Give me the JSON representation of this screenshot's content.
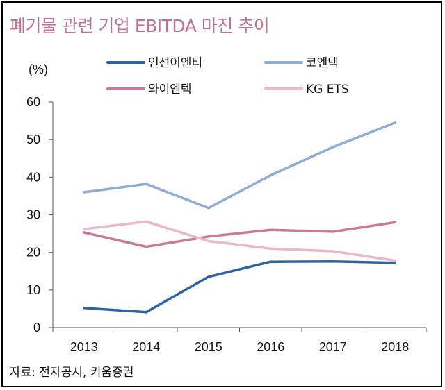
{
  "title": "폐기물 관련 기업 EBITDA 마진 추이",
  "source": "자료: 전자공시, 키움증권",
  "chart_data": {
    "type": "line",
    "title": "폐기물 관련 기업 EBITDA 마진 추이",
    "ylabel": "(%)",
    "xlabel": "",
    "x": [
      "2013",
      "2014",
      "2015",
      "2016",
      "2017",
      "2018"
    ],
    "ylim": [
      0,
      60
    ],
    "yticks": [
      "0",
      "10",
      "20",
      "30",
      "40",
      "50",
      "60"
    ],
    "grid": false,
    "legend_position": "top",
    "series": [
      {
        "name": "인선이엔티",
        "color": "#2f64a3",
        "values": [
          5.2,
          4.1,
          13.5,
          17.5,
          17.6,
          17.2
        ]
      },
      {
        "name": "코엔텍",
        "color": "#8eacd4",
        "values": [
          36.0,
          38.2,
          31.8,
          40.5,
          48.0,
          54.5
        ]
      },
      {
        "name": "와이엔텍",
        "color": "#c97a97",
        "values": [
          25.3,
          21.5,
          24.2,
          26.0,
          25.5,
          28.0
        ]
      },
      {
        "name": "KG ETS",
        "color": "#eab8c9",
        "values": [
          26.2,
          28.2,
          23.0,
          21.0,
          20.3,
          17.8
        ]
      }
    ]
  }
}
